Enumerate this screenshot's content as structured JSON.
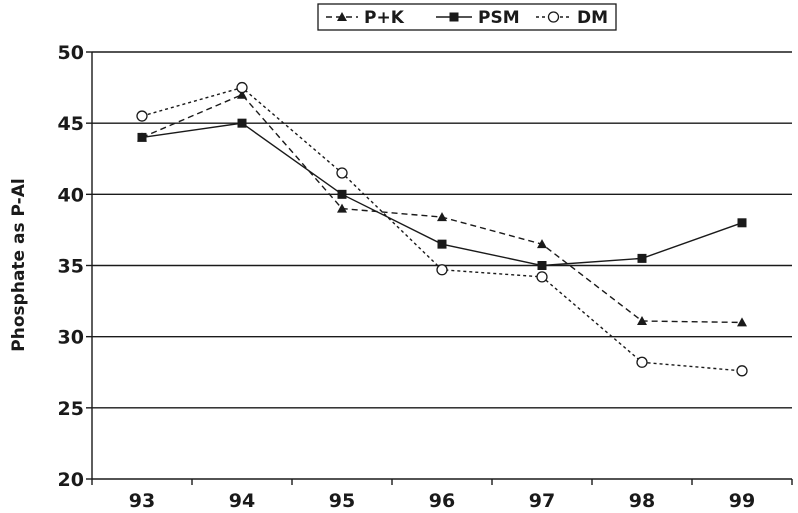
{
  "chart_data": {
    "type": "line",
    "categories": [
      "93",
      "94",
      "95",
      "96",
      "97",
      "98",
      "99"
    ],
    "ylabel": "Phosphate as P-Al",
    "ylim": [
      20,
      50
    ],
    "yticks": [
      "20",
      "25",
      "30",
      "35",
      "40",
      "45",
      "50"
    ],
    "grid": true,
    "legend_position": "top-center",
    "series": [
      {
        "name": "P+K",
        "values": [
          44.0,
          47.0,
          39.0,
          38.4,
          36.5,
          31.1,
          31.0
        ],
        "line": "dashed",
        "marker": "triangle",
        "color": "#1a1a1a"
      },
      {
        "name": "PSM",
        "values": [
          44.0,
          45.0,
          40.0,
          36.5,
          35.0,
          35.5,
          38.0
        ],
        "line": "solid",
        "marker": "square",
        "color": "#1a1a1a"
      },
      {
        "name": "DM",
        "values": [
          45.5,
          47.5,
          41.5,
          34.7,
          34.2,
          28.2,
          27.6
        ],
        "line": "dotted",
        "marker": "circle-open",
        "color": "#1a1a1a"
      }
    ]
  }
}
